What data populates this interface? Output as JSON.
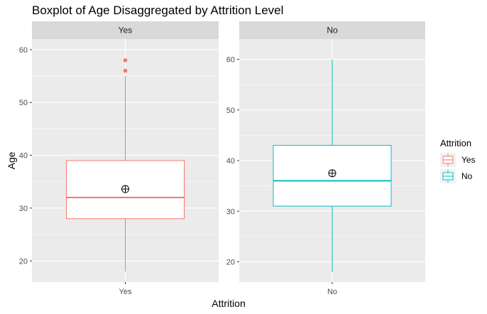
{
  "chart_data": {
    "type": "boxplot",
    "title": "Boxplot of Age Disaggregated by Attrition Level",
    "xlabel": "Attrition",
    "ylabel": "Age",
    "facet_scales": "free_y",
    "grid": true,
    "legend": {
      "title": "Attrition",
      "placement": "right",
      "entries": [
        "Yes",
        "No"
      ]
    },
    "colors": {
      "Yes": "#F8766D",
      "No": "#00BFC4"
    },
    "panel_background": "#EBEBEB",
    "strip_background": "#D9D9D9",
    "panels": [
      {
        "strip": "Yes",
        "category": "Yes",
        "ylim": [
          16.0,
          62.0
        ],
        "yticks": [
          20,
          30,
          40,
          50,
          60
        ],
        "box": {
          "min": 18,
          "q1": 28,
          "median": 32,
          "q3": 39,
          "max": 55,
          "mean": 33.6
        },
        "outliers": [
          56,
          58
        ]
      },
      {
        "strip": "No",
        "category": "No",
        "ylim": [
          16.0,
          64.0
        ],
        "yticks": [
          20,
          30,
          40,
          50,
          60
        ],
        "box": {
          "min": 18,
          "q1": 31,
          "median": 36,
          "q3": 43,
          "max": 60,
          "mean": 37.5
        },
        "outliers": []
      }
    ]
  }
}
